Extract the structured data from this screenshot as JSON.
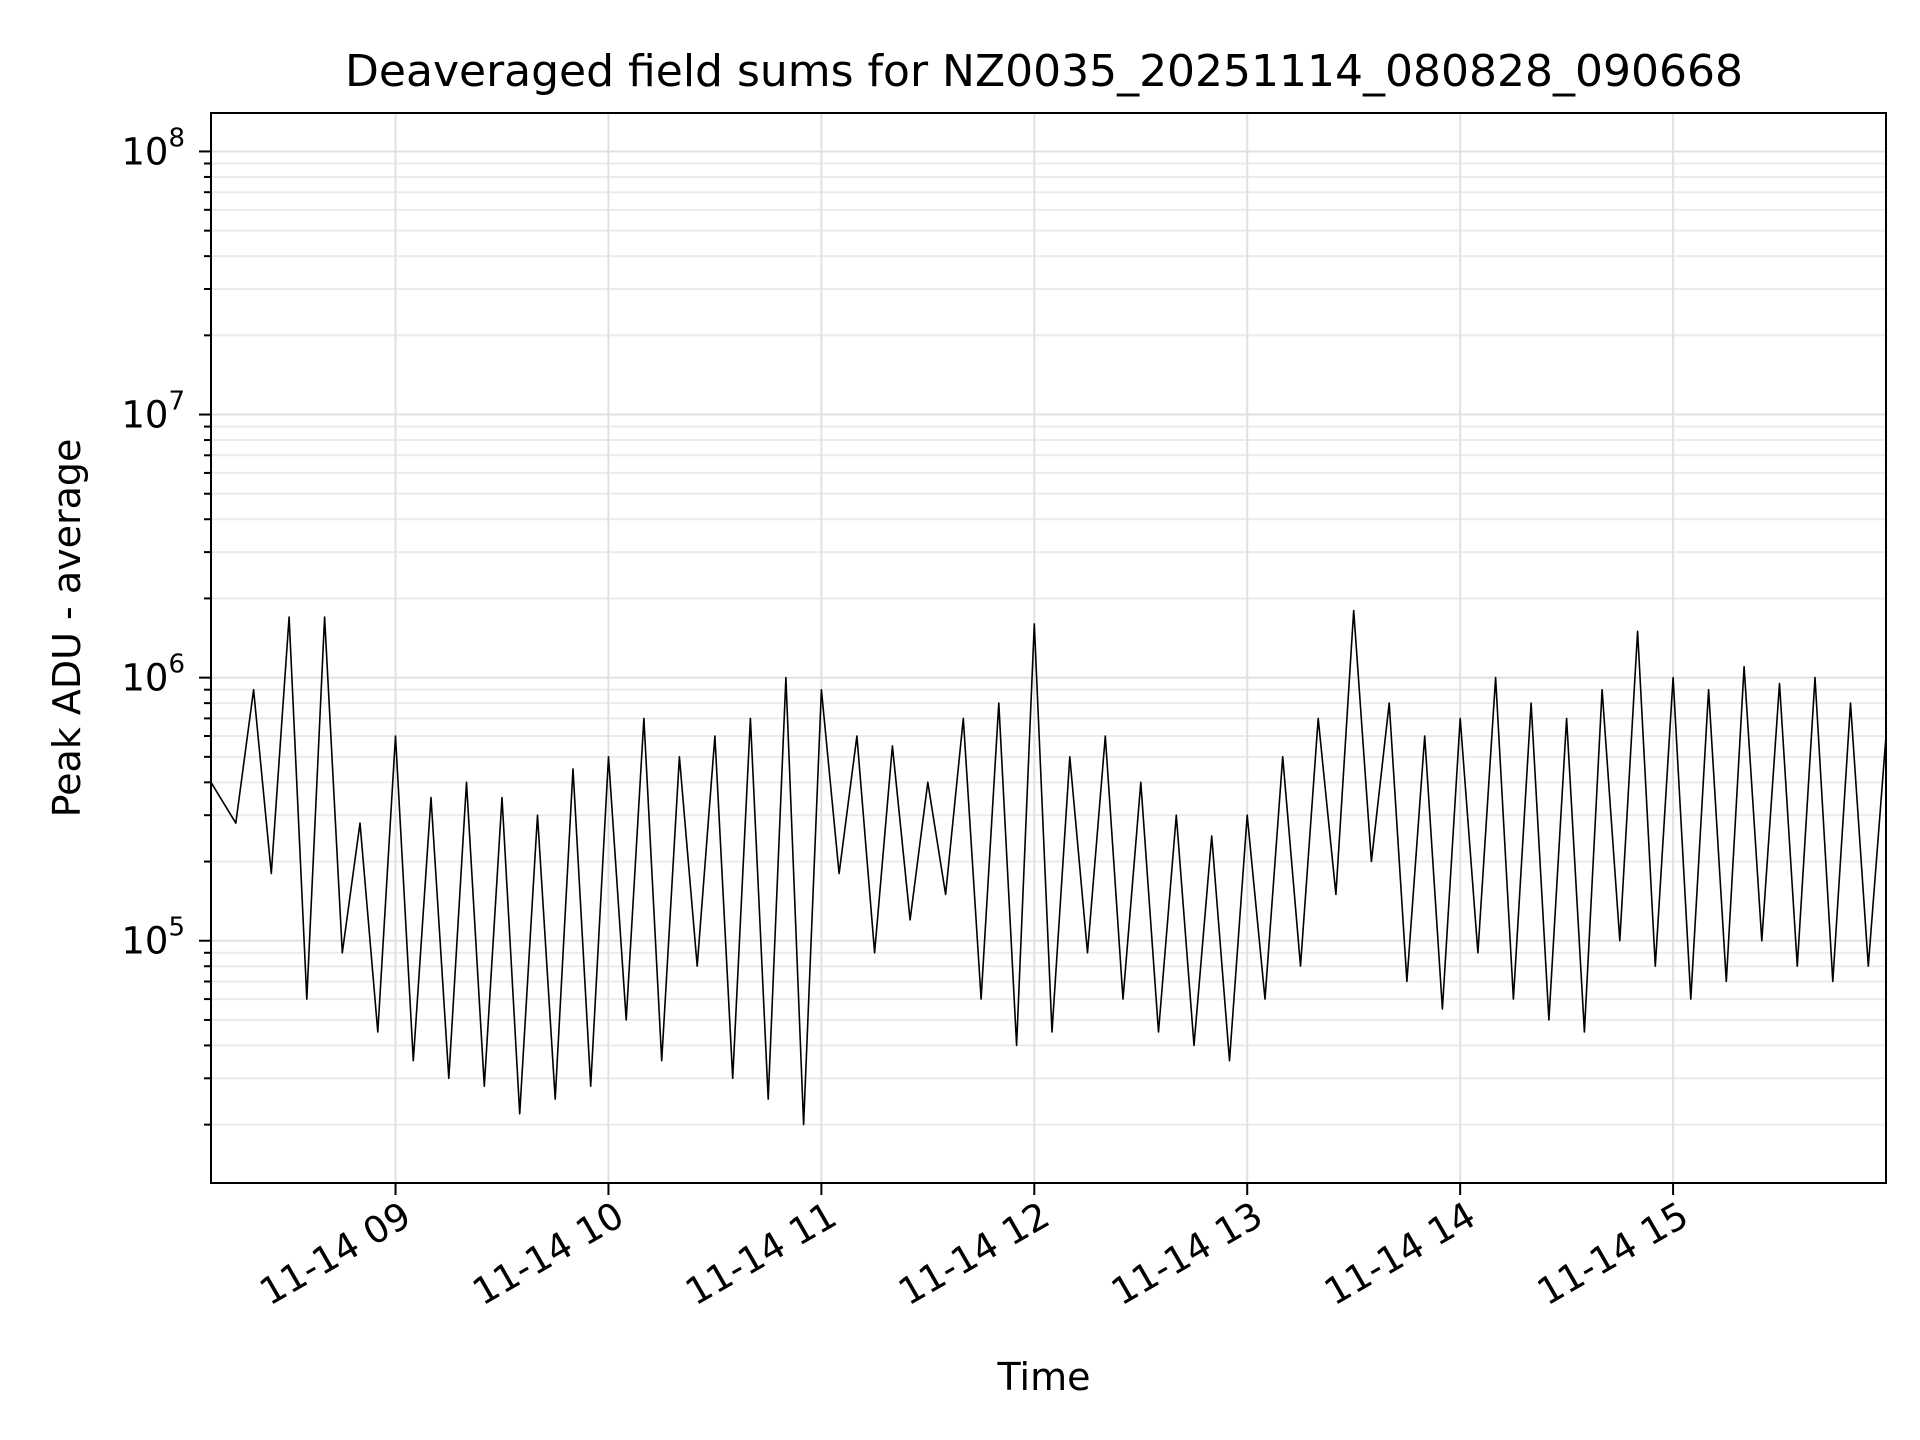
{
  "chart_data": {
    "type": "line",
    "title": "Deaveraged field sums for NZ0035_20251114_080828_090668",
    "xlabel": "Time",
    "ylabel": "Peak ADU - average",
    "yscale": "log",
    "ylim": [
      12000,
      140000000
    ],
    "xlim": [
      "2025-11-14 08:08",
      "2025-11-14 16:00"
    ],
    "grid": true,
    "x_ticks": [
      {
        "value": "2025-11-14 09:00",
        "label": "11-14 09"
      },
      {
        "value": "2025-11-14 10:00",
        "label": "11-14 10"
      },
      {
        "value": "2025-11-14 11:00",
        "label": "11-14 11"
      },
      {
        "value": "2025-11-14 12:00",
        "label": "11-14 12"
      },
      {
        "value": "2025-11-14 13:00",
        "label": "11-14 13"
      },
      {
        "value": "2025-11-14 14:00",
        "label": "11-14 14"
      },
      {
        "value": "2025-11-14 15:00",
        "label": "11-14 15"
      }
    ],
    "y_ticks": [
      {
        "value": 100000,
        "base": "10",
        "exp": "5"
      },
      {
        "value": 1000000,
        "base": "10",
        "exp": "6"
      },
      {
        "value": 10000000,
        "base": "10",
        "exp": "7"
      },
      {
        "value": 100000000,
        "base": "10",
        "exp": "8"
      }
    ],
    "series": [
      {
        "color": "#000000",
        "x": [
          "2025-11-14 08:08",
          "2025-11-14 08:15",
          "2025-11-14 08:20",
          "2025-11-14 08:25",
          "2025-11-14 08:30",
          "2025-11-14 08:35",
          "2025-11-14 08:40",
          "2025-11-14 08:45",
          "2025-11-14 08:50",
          "2025-11-14 08:55",
          "2025-11-14 09:00",
          "2025-11-14 09:05",
          "2025-11-14 09:10",
          "2025-11-14 09:15",
          "2025-11-14 09:20",
          "2025-11-14 09:25",
          "2025-11-14 09:30",
          "2025-11-14 09:35",
          "2025-11-14 09:40",
          "2025-11-14 09:45",
          "2025-11-14 09:50",
          "2025-11-14 09:55",
          "2025-11-14 10:00",
          "2025-11-14 10:05",
          "2025-11-14 10:10",
          "2025-11-14 10:15",
          "2025-11-14 10:20",
          "2025-11-14 10:25",
          "2025-11-14 10:30",
          "2025-11-14 10:35",
          "2025-11-14 10:40",
          "2025-11-14 10:45",
          "2025-11-14 10:50",
          "2025-11-14 10:55",
          "2025-11-14 11:00",
          "2025-11-14 11:05",
          "2025-11-14 11:10",
          "2025-11-14 11:15",
          "2025-11-14 11:20",
          "2025-11-14 11:25",
          "2025-11-14 11:30",
          "2025-11-14 11:35",
          "2025-11-14 11:40",
          "2025-11-14 11:45",
          "2025-11-14 11:50",
          "2025-11-14 11:55",
          "2025-11-14 12:00",
          "2025-11-14 12:05",
          "2025-11-14 12:10",
          "2025-11-14 12:15",
          "2025-11-14 12:20",
          "2025-11-14 12:25",
          "2025-11-14 12:30",
          "2025-11-14 12:35",
          "2025-11-14 12:40",
          "2025-11-14 12:45",
          "2025-11-14 12:50",
          "2025-11-14 12:55",
          "2025-11-14 13:00",
          "2025-11-14 13:05",
          "2025-11-14 13:10",
          "2025-11-14 13:15",
          "2025-11-14 13:20",
          "2025-11-14 13:25",
          "2025-11-14 13:30",
          "2025-11-14 13:35",
          "2025-11-14 13:40",
          "2025-11-14 13:45",
          "2025-11-14 13:50",
          "2025-11-14 13:55",
          "2025-11-14 14:00",
          "2025-11-14 14:05",
          "2025-11-14 14:10",
          "2025-11-14 14:15",
          "2025-11-14 14:20",
          "2025-11-14 14:25",
          "2025-11-14 14:30",
          "2025-11-14 14:35",
          "2025-11-14 14:40",
          "2025-11-14 14:45",
          "2025-11-14 14:50",
          "2025-11-14 14:55",
          "2025-11-14 15:00",
          "2025-11-14 15:05",
          "2025-11-14 15:10",
          "2025-11-14 15:15",
          "2025-11-14 15:20",
          "2025-11-14 15:25",
          "2025-11-14 15:30",
          "2025-11-14 15:35",
          "2025-11-14 15:40",
          "2025-11-14 15:45",
          "2025-11-14 15:50",
          "2025-11-14 15:55",
          "2025-11-14 16:00"
        ],
        "y": [
          400000,
          280000,
          900000,
          180000,
          1700000,
          60000,
          1700000,
          90000,
          280000,
          45000,
          600000,
          35000,
          350000,
          30000,
          400000,
          28000,
          350000,
          22000,
          300000,
          25000,
          450000,
          28000,
          500000,
          50000,
          700000,
          35000,
          500000,
          80000,
          600000,
          30000,
          700000,
          25000,
          1000000,
          20000,
          900000,
          180000,
          600000,
          90000,
          550000,
          120000,
          400000,
          150000,
          700000,
          60000,
          800000,
          40000,
          1600000,
          45000,
          500000,
          90000,
          600000,
          60000,
          400000,
          45000,
          300000,
          40000,
          250000,
          35000,
          300000,
          60000,
          500000,
          80000,
          700000,
          150000,
          1800000,
          200000,
          800000,
          70000,
          600000,
          55000,
          700000,
          90000,
          1000000,
          60000,
          800000,
          50000,
          700000,
          45000,
          900000,
          100000,
          1500000,
          80000,
          1000000,
          60000,
          900000,
          70000,
          1100000,
          100000,
          950000,
          80000,
          1000000,
          70000,
          800000,
          80000,
          600000
        ]
      }
    ]
  }
}
